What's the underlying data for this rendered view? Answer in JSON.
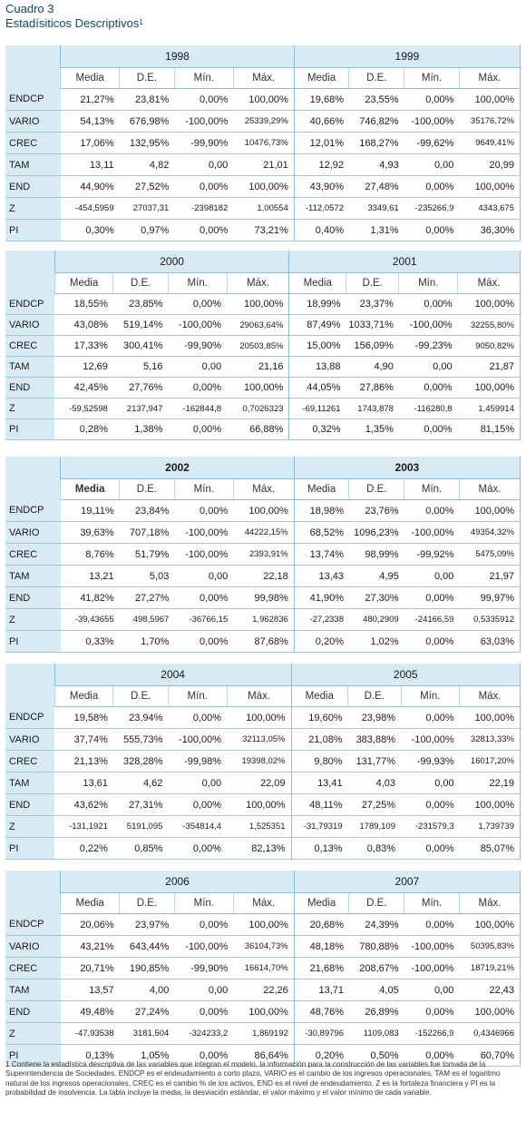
{
  "caption": {
    "title": "Cuadro 3",
    "subtitle": "Estadísiticos Descriptivos",
    "footnote_mark": "1"
  },
  "columns": [
    "Media",
    "D.E.",
    "Mín.",
    "Máx."
  ],
  "blocks": [
    {
      "years": [
        "1998",
        "1999"
      ],
      "rows": [
        {
          "label": "ENDCP",
          "values": [
            "21,27%",
            "23,81%",
            "0,00%",
            "100,00%",
            "19,68%",
            "23,55%",
            "0,00%",
            "100,00%"
          ]
        },
        {
          "label": "VARIO",
          "values": [
            "54,13%",
            "676,98%",
            "-100,00%",
            "25339,29%",
            "40,66%",
            "746,82%",
            "-100,00%",
            "35176,72%"
          ]
        },
        {
          "label": "CREC",
          "values": [
            "17,06%",
            "132,95%",
            "-99,90%",
            "10476,73%",
            "12,01%",
            "168,27%",
            "-99,62%",
            "9649,41%"
          ]
        },
        {
          "label": "TAM",
          "values": [
            "13,11",
            "4,82",
            "0,00",
            "21,01",
            "12,92",
            "4,93",
            "0,00",
            "20,99"
          ]
        },
        {
          "label": "END",
          "values": [
            "44,90%",
            "27,52%",
            "0,00%",
            "100,00%",
            "43,90%",
            "27,48%",
            "0,00%",
            "100,00%"
          ]
        },
        {
          "label": "Z",
          "values": [
            "-454,5959",
            "27037,31",
            "-2398182",
            "1,00554",
            "-112,0572",
            "3349,61",
            "-235266,9",
            "4343,675"
          ]
        },
        {
          "label": "PI",
          "values": [
            "0,30%",
            "0,97%",
            "0,00%",
            "73,21%",
            "0,40%",
            "1,31%",
            "0,00%",
            "36,30%"
          ]
        }
      ]
    },
    {
      "years": [
        "2000",
        "2001"
      ],
      "rows": [
        {
          "label": "ENDCP",
          "values": [
            "18,55%",
            "23,85%",
            "0,00%",
            "100,00%",
            "18,99%",
            "23,37%",
            "0,00%",
            "100,00%"
          ]
        },
        {
          "label": "VARIO",
          "values": [
            "43,08%",
            "519,14%",
            "-100,00%",
            "29063,64%",
            "87,49%",
            "1033,71%",
            "-100,00%",
            "32255,80%"
          ]
        },
        {
          "label": "CREC",
          "values": [
            "17,33%",
            "300,41%",
            "-99,90%",
            "20503,85%",
            "15,00%",
            "156,09%",
            "-99,23%",
            "9050,82%"
          ]
        },
        {
          "label": "TAM",
          "values": [
            "12,69",
            "5,16",
            "0,00",
            "21,16",
            "13,88",
            "4,90",
            "0,00",
            "21,87"
          ]
        },
        {
          "label": "END",
          "values": [
            "42,45%",
            "27,76%",
            "0,00%",
            "100,00%",
            "44,05%",
            "27,86%",
            "0,00%",
            "100,00%"
          ]
        },
        {
          "label": "Z",
          "values": [
            "-59,52598",
            "2137,947",
            "-162844,8",
            "0,7026323",
            "-69,11261",
            "1743,878",
            "-116280,8",
            "1,459914"
          ]
        },
        {
          "label": "PI",
          "values": [
            "0,28%",
            "1,38%",
            "0,00%",
            "66,88%",
            "0,32%",
            "1,35%",
            "0,00%",
            "81,15%"
          ]
        }
      ]
    },
    {
      "years": [
        "2002",
        "2003"
      ],
      "rows": [
        {
          "label": "ENDCP",
          "values": [
            "19,11%",
            "23,84%",
            "0,00%",
            "100,00%",
            "18,98%",
            "23,76%",
            "0,00%",
            "100,00%"
          ]
        },
        {
          "label": "VARIO",
          "values": [
            "39,63%",
            "707,18%",
            "-100,00%",
            "44222,15%",
            "68,52%",
            "1096,23%",
            "-100,00%",
            "49354,32%"
          ]
        },
        {
          "label": "CREC",
          "values": [
            "8,76%",
            "51,79%",
            "-100,00%",
            "2393,91%",
            "13,74%",
            "98,99%",
            "-99,92%",
            "5475,09%"
          ]
        },
        {
          "label": "TAM",
          "values": [
            "13,21",
            "5,03",
            "0,00",
            "22,18",
            "13,43",
            "4,95",
            "0,00",
            "21,97"
          ]
        },
        {
          "label": "END",
          "values": [
            "41,82%",
            "27,27%",
            "0,00%",
            "99,98%",
            "41,90%",
            "27,30%",
            "0,00%",
            "99,97%"
          ]
        },
        {
          "label": "Z",
          "values": [
            "-39,43655",
            "498,5967",
            "-36766,15",
            "1,962836",
            "-27,2338",
            "480,2909",
            "-24166,59",
            "0,5335912"
          ]
        },
        {
          "label": "PI",
          "values": [
            "0,33%",
            "1,70%",
            "0,00%",
            "87,68%",
            "0,20%",
            "1,02%",
            "0,00%",
            "63,03%"
          ]
        }
      ]
    },
    {
      "years": [
        "2004",
        "2005"
      ],
      "rows": [
        {
          "label": "ENDCP",
          "values": [
            "19,58%",
            "23,94%",
            "0,00%",
            "100,00%",
            "19,60%",
            "23,98%",
            "0,00%",
            "100,00%"
          ]
        },
        {
          "label": "VARIO",
          "values": [
            "37,74%",
            "555,73%",
            "-100,00%",
            "32113,05%",
            "21,08%",
            "383,88%",
            "-100,00%",
            "32813,33%"
          ]
        },
        {
          "label": "CREC",
          "values": [
            "21,13%",
            "328,28%",
            "-99,98%",
            "19398,02%",
            "9,80%",
            "131,77%",
            "-99,93%",
            "16017,20%"
          ]
        },
        {
          "label": "TAM",
          "values": [
            "13,61",
            "4,62",
            "0,00",
            "22,09",
            "13,41",
            "4,03",
            "0,00",
            "22,19"
          ]
        },
        {
          "label": "END",
          "values": [
            "43,62%",
            "27,31%",
            "0,00%",
            "100,00%",
            "48,11%",
            "27,25%",
            "0,00%",
            "100,00%"
          ]
        },
        {
          "label": "Z",
          "values": [
            "-131,1921",
            "5191,095",
            "-354814,4",
            "1,525351",
            "-31,79319",
            "1789,109",
            "-231579,3",
            "1,739739"
          ]
        },
        {
          "label": "PI",
          "values": [
            "0,22%",
            "0,85%",
            "0,00%",
            "82,13%",
            "0,13%",
            "0,83%",
            "0,00%",
            "85,07%"
          ]
        }
      ]
    },
    {
      "years": [
        "2006",
        "2007"
      ],
      "rows": [
        {
          "label": "ENDCP",
          "values": [
            "20,06%",
            "23,97%",
            "0,00%",
            "100,00%",
            "20,68%",
            "24,39%",
            "0,00%",
            "100,00%"
          ]
        },
        {
          "label": "VARIO",
          "values": [
            "43,21%",
            "643,44%",
            "-100,00%",
            "36104,73%",
            "48,18%",
            "780,88%",
            "-100,00%",
            "50395,83%"
          ]
        },
        {
          "label": "CREC",
          "values": [
            "20,71%",
            "190,85%",
            "-99,90%",
            "16614,70%",
            "21,68%",
            "208,67%",
            "-100,00%",
            "18719,21%"
          ]
        },
        {
          "label": "TAM",
          "values": [
            "13,57",
            "4,00",
            "0,00",
            "22,26",
            "13,71",
            "4,05",
            "0,00",
            "22,43"
          ]
        },
        {
          "label": "END",
          "values": [
            "49,48%",
            "27,24%",
            "0,00%",
            "100,00%",
            "48,76%",
            "26,89%",
            "0,00%",
            "100,00%"
          ]
        },
        {
          "label": "Z",
          "values": [
            "-47,93538",
            "3181,504",
            "-324233,2",
            "1,869192",
            "-30,89796",
            "1109,083",
            "-152266,9",
            "0,4346966"
          ]
        },
        {
          "label": "PI",
          "values": [
            "0,13%",
            "1,05%",
            "0,00%",
            "86,64%",
            "0,20%",
            "0,50%",
            "0,00%",
            "60,70%"
          ]
        }
      ]
    }
  ],
  "footnote": "1 Contiene la estadística descriptiva de las variables que integran el modelo, la información para la construcción de las variables fue tomada de la Superintendencia de Sociedades. ENDCP es el endeudamiento a corto plazo, VARIO es el cambio de los ingresos operacionales, TAM es el logaritmo natural de los ingresos operacionales, CREC es el cambio % de los activos, END es el nivel de endeudamiento, Z es la fortaleza financiera y PI es la probabilidad de insolvencia. La tabla incluye la media, la desviación estándar, el valor máximo y el valor mínimo de cada variable."
}
